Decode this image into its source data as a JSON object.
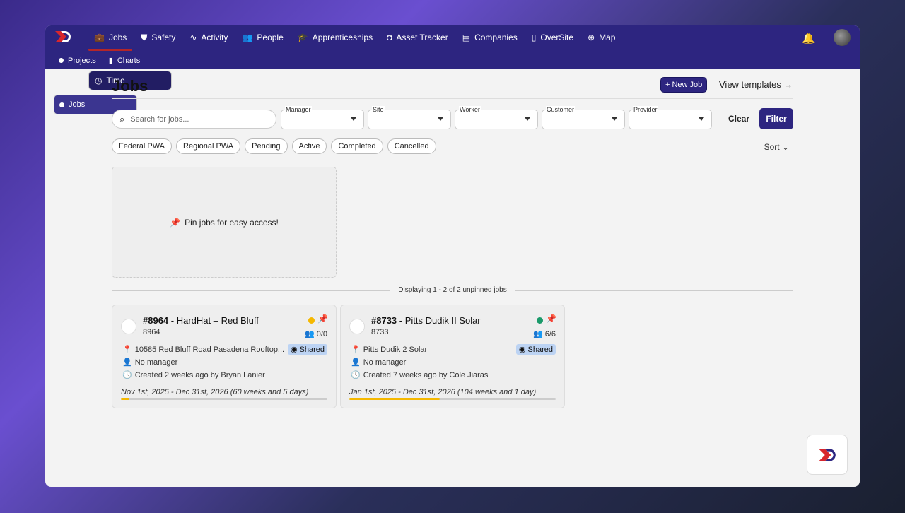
{
  "nav": {
    "items": [
      {
        "label": "Jobs",
        "icon": "briefcase-icon"
      },
      {
        "label": "Time",
        "icon": "clock-icon"
      },
      {
        "label": "Safety",
        "icon": "shield-icon"
      },
      {
        "label": "Activity",
        "icon": "pulse-icon"
      },
      {
        "label": "People",
        "icon": "users-icon"
      },
      {
        "label": "Apprenticeships",
        "icon": "graduation-cap-icon"
      },
      {
        "label": "Asset Tracker",
        "icon": "camera-icon"
      },
      {
        "label": "Companies",
        "icon": "building-icon"
      },
      {
        "label": "OverSite",
        "icon": "map-icon"
      },
      {
        "label": "Map",
        "icon": "globe-icon"
      }
    ],
    "sub": [
      {
        "label": "Jobs"
      },
      {
        "label": "Projects"
      },
      {
        "label": "Charts"
      }
    ]
  },
  "page": {
    "title": "Jobs",
    "new_job": "+ New Job",
    "view_templates": "View templates →",
    "search_placeholder": "Search for jobs...",
    "filters": [
      "Manager",
      "Site",
      "Worker",
      "Customer",
      "Provider"
    ],
    "clear": "Clear",
    "filter": "Filter",
    "chips": [
      "Federal PWA",
      "Regional PWA",
      "Pending",
      "Active",
      "Completed",
      "Cancelled"
    ],
    "sort": "Sort",
    "pin_hint": "Pin jobs for easy access!",
    "displaying": "Displaying 1 - 2 of 2 unpinned jobs"
  },
  "jobs": [
    {
      "id": "#8964",
      "name": " - HardHat – Red Bluff",
      "number": "8964",
      "status_color": "#f5b800",
      "workers": "0/0",
      "location": "10585 Red Bluff Road Pasadena Rooftop...",
      "shared": "Shared",
      "manager": "No manager",
      "created": "Created 2 weeks ago by Bryan Lanier",
      "dates": "Nov 1st, 2025 - Dec 31st, 2026 (60 weeks and 5 days)",
      "progress": 4
    },
    {
      "id": "#8733",
      "name": " - Pitts Dudik II Solar",
      "number": "8733",
      "status_color": "#1a9a6a",
      "workers": "6/6",
      "location": "Pitts Dudik 2 Solar",
      "shared": "Shared",
      "manager": "No manager",
      "created": "Created 7 weeks ago by Cole Jiaras",
      "dates": "Jan 1st, 2025 - Dec 31st, 2026 (104 weeks and 1 day)",
      "progress": 44
    }
  ],
  "colors": {
    "header": "#2d2580",
    "accent": "#b3262a",
    "progress": "#f5b800"
  }
}
